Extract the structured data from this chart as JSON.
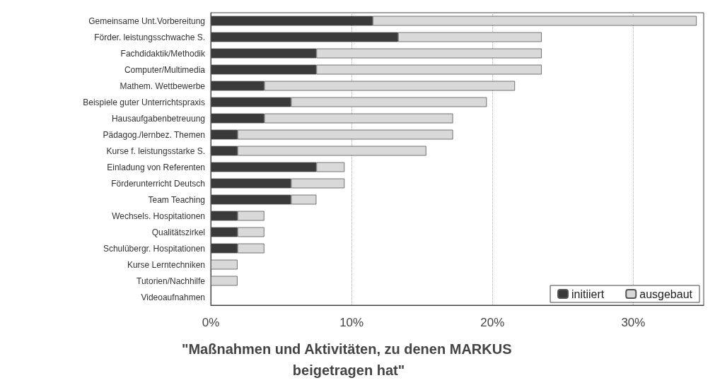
{
  "chart_data": {
    "type": "bar",
    "orientation": "horizontal",
    "stacked": true,
    "title": "\"Maßnahmen und Aktivitäten, zu denen MARKUS beigetragen hat\"",
    "categories": [
      "Gemeinsame Unt.Vorbereitung",
      "Förder. leistungsschwache S.",
      "Fachdidaktik/Methodik",
      "Computer/Multimedia",
      "Mathem. Wettbewerbe",
      "Beispiele guter Unterrichtspraxis",
      "Hausaufgabenbetreuung",
      "Pädagog./lernbez. Themen",
      "Kurse f. leistungsstarke S.",
      "Einladung von Referenten",
      "Förderunterricht Deutsch",
      "Team Teaching",
      "Wechsels. Hospitationen",
      "Qualitätszirkel",
      "Schulübergr. Hospitationen",
      "Kurse Lerntechniken",
      "Tutorien/Nachhilfe",
      "Videoaufnahmen"
    ],
    "series": [
      {
        "name": "initiiert",
        "color": "#3a3a3a",
        "values": [
          11.5,
          13.3,
          7.5,
          7.5,
          3.8,
          5.7,
          3.8,
          1.9,
          1.9,
          7.5,
          5.7,
          5.7,
          1.9,
          1.9,
          1.9,
          0,
          0,
          0
        ]
      },
      {
        "name": "ausgebaut",
        "color": "#d9d9d9",
        "values": [
          23.0,
          10.2,
          16.0,
          16.0,
          17.8,
          13.9,
          13.4,
          15.3,
          13.4,
          2.0,
          3.8,
          1.8,
          1.9,
          1.9,
          1.9,
          1.9,
          1.9,
          0
        ]
      }
    ],
    "xlim": [
      0,
      35
    ],
    "xticks": [
      {
        "value": 0,
        "label": "0%"
      },
      {
        "value": 10,
        "label": "10%"
      },
      {
        "value": 20,
        "label": "20%"
      },
      {
        "value": 30,
        "label": "30%"
      }
    ],
    "grid": "x",
    "legend": "bottom right"
  }
}
